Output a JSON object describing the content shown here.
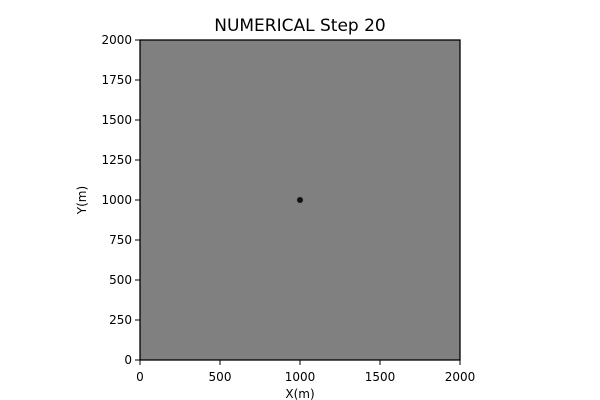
{
  "chart_data": {
    "type": "heatmap",
    "title": "NUMERICAL Step 20",
    "xlabel": "X(m)",
    "ylabel": "Y(m)",
    "xlim": [
      0,
      2000
    ],
    "ylim": [
      0,
      2000
    ],
    "xticks": [
      0,
      500,
      1000,
      1500,
      2000
    ],
    "yticks": [
      0,
      250,
      500,
      750,
      1000,
      1250,
      1500,
      1750,
      2000
    ],
    "background_color": "#808080",
    "point": {
      "x": 1000,
      "y": 1000,
      "color": "#111111"
    },
    "grid": false,
    "colormap": "gray"
  }
}
